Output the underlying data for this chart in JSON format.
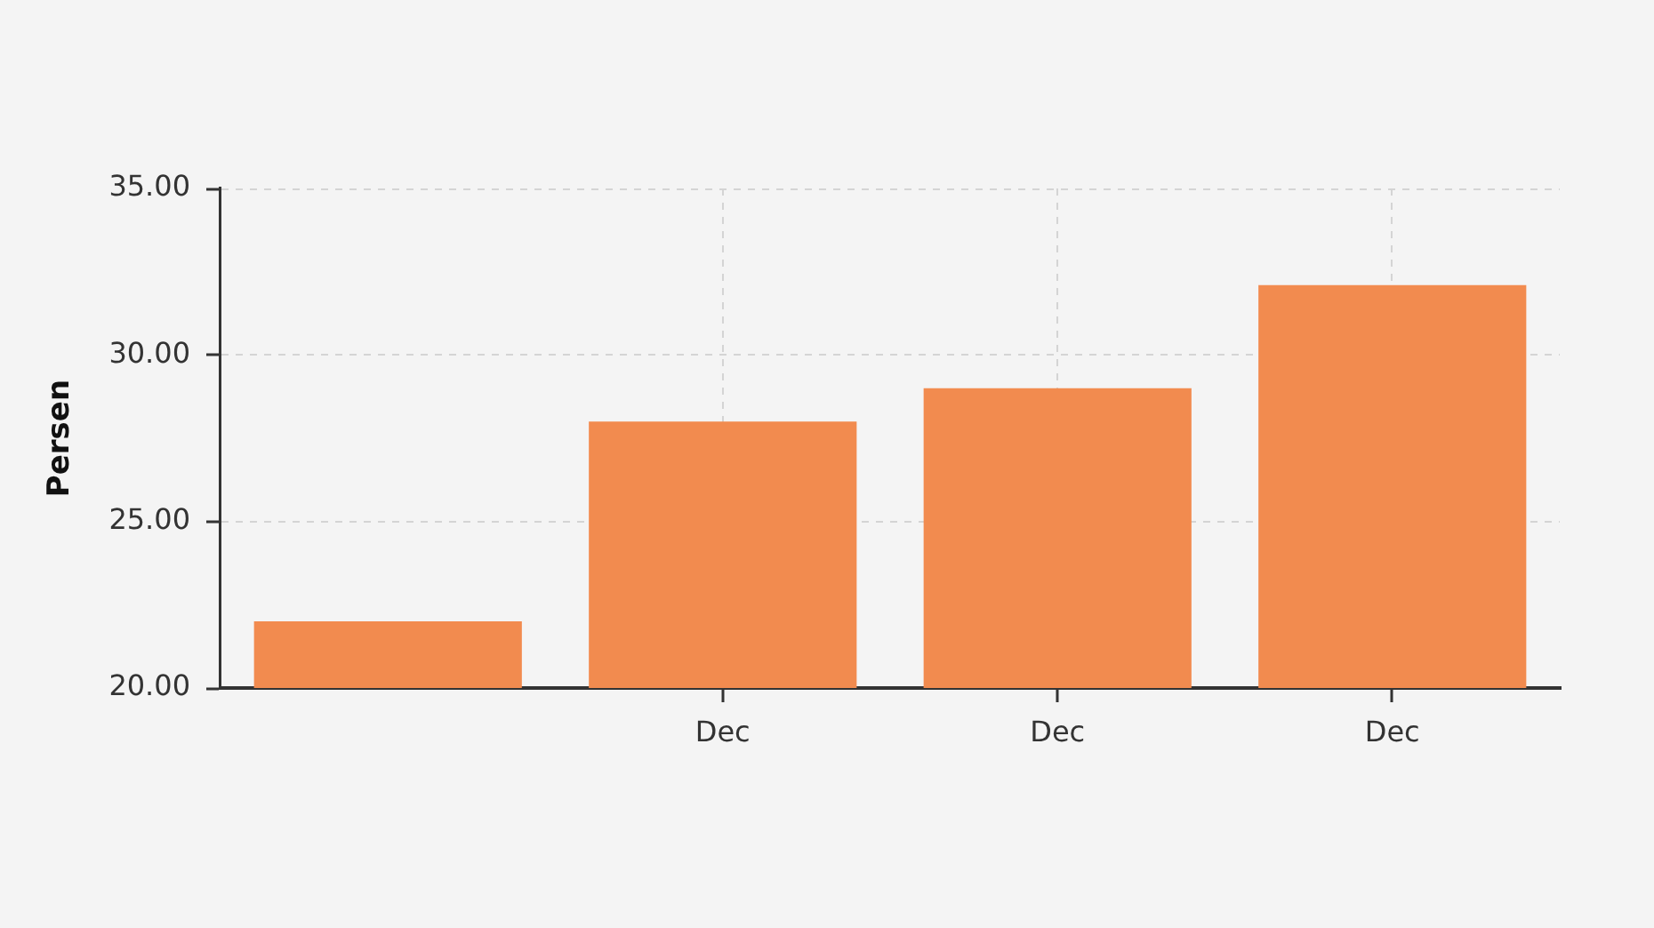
{
  "chart_data": {
    "type": "bar",
    "ylabel": "Persen",
    "categories": [
      null,
      "Dec",
      "Dec",
      "Dec"
    ],
    "values": [
      22.0,
      28.0,
      29.0,
      32.1
    ],
    "color": "#f28b4f",
    "ylim": [
      20,
      35
    ],
    "yticks": [
      {
        "value": 20,
        "label": "20.00"
      },
      {
        "value": 25,
        "label": "25.00"
      },
      {
        "value": 30,
        "label": "30.00"
      },
      {
        "value": 35,
        "label": "35.00"
      }
    ],
    "grid": true
  }
}
